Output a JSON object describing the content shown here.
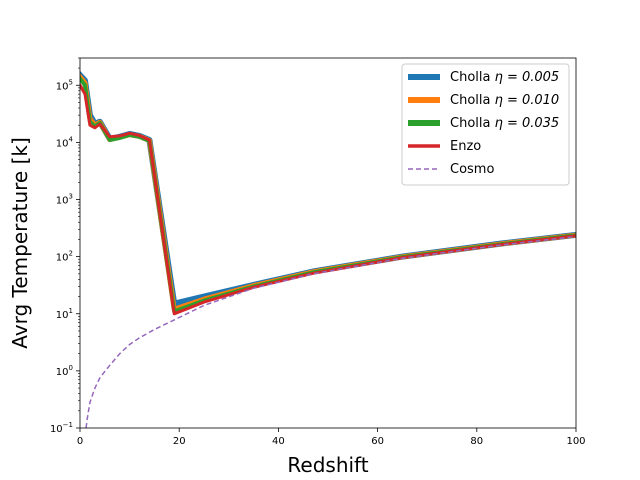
{
  "chart_data": {
    "type": "line",
    "xlabel": "Redshift",
    "ylabel": "Avrg Temperature [k]",
    "xlim": [
      0,
      100
    ],
    "ylim": [
      0.1,
      300000
    ],
    "yscale": "log",
    "x_ticks": [
      "0",
      "20",
      "40",
      "60",
      "80",
      "100"
    ],
    "y_ticks": [
      {
        "base": "10",
        "exp": "−1"
      },
      {
        "base": "10",
        "exp": "0"
      },
      {
        "base": "10",
        "exp": "1"
      },
      {
        "base": "10",
        "exp": "2"
      },
      {
        "base": "10",
        "exp": "3"
      },
      {
        "base": "10",
        "exp": "4"
      },
      {
        "base": "10",
        "exp": "5"
      }
    ],
    "legend_position": "top-right",
    "series": [
      {
        "name": "Cholla η = 0.005",
        "label_prefix": "Cholla ",
        "label_math": "η = 0.005",
        "color": "#1f77b4",
        "style": "solid",
        "x": [
          0,
          1,
          2,
          3,
          4,
          6,
          8,
          10,
          12,
          14,
          19,
          25,
          35,
          47,
          65,
          85,
          100
        ],
        "y": [
          150000,
          120000,
          30000,
          21000,
          23000,
          11500,
          12500,
          14000,
          13000,
          11000,
          15,
          20,
          32,
          55,
          100,
          170,
          240
        ]
      },
      {
        "name": "Cholla η = 0.010",
        "label_prefix": "Cholla ",
        "label_math": "η = 0.010",
        "color": "#ff7f0e",
        "style": "solid",
        "x": [
          0,
          1,
          2,
          3,
          4,
          6,
          8,
          10,
          12,
          14,
          19,
          25,
          35,
          47,
          65,
          85,
          100
        ],
        "y": [
          140000,
          110000,
          26000,
          20000,
          22500,
          11200,
          12300,
          13700,
          12800,
          10800,
          12,
          18,
          31,
          54,
          99,
          168,
          238
        ]
      },
      {
        "name": "Cholla η = 0.035",
        "label_prefix": "Cholla ",
        "label_math": "η = 0.035",
        "color": "#2ca02c",
        "style": "solid",
        "x": [
          0,
          1,
          2,
          3,
          4,
          6,
          8,
          10,
          12,
          14,
          19,
          25,
          35,
          47,
          65,
          85,
          100
        ],
        "y": [
          130000,
          100000,
          23000,
          19000,
          22000,
          11000,
          12000,
          13500,
          12500,
          10600,
          11,
          17,
          30,
          53,
          98,
          166,
          236
        ]
      },
      {
        "name": "Enzo",
        "label_prefix": "Enzo",
        "label_math": "",
        "color": "#d62728",
        "style": "solid",
        "x": [
          0,
          1,
          2,
          3,
          4,
          6,
          8,
          10,
          12,
          14,
          19,
          25,
          35,
          47,
          65,
          85,
          100
        ],
        "y": [
          100000,
          70000,
          20000,
          18000,
          21000,
          12500,
          13000,
          14500,
          13200,
          11000,
          10,
          16,
          29,
          51,
          96,
          163,
          232
        ]
      },
      {
        "name": "Cosmo",
        "label_prefix": "Cosmo",
        "label_math": "",
        "color": "#9467bd",
        "style": "dashed",
        "x": [
          1.2,
          1.5,
          2,
          3,
          4,
          5,
          6,
          8,
          10,
          12,
          15,
          19,
          25,
          35,
          47,
          65,
          85,
          100
        ],
        "y": [
          0.1,
          0.15,
          0.28,
          0.5,
          0.75,
          0.98,
          1.25,
          2.0,
          2.9,
          3.8,
          5.3,
          7.8,
          14,
          28,
          50,
          94,
          160,
          225
        ]
      }
    ]
  }
}
